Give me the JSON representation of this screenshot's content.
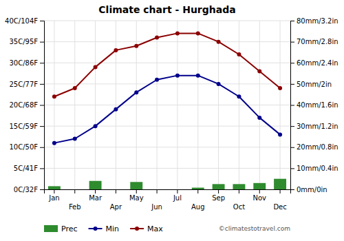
{
  "chart_data": {
    "type": "line",
    "title": "Climate chart - Hurghada",
    "categories": [
      "Jan",
      "Feb",
      "Mar",
      "Apr",
      "May",
      "Jun",
      "Jul",
      "Aug",
      "Sep",
      "Oct",
      "Nov",
      "Dec"
    ],
    "series": [
      {
        "name": "Prec",
        "type": "bar",
        "axis": "y2",
        "color": "#2e8b2e",
        "values": [
          1.5,
          null,
          4.0,
          null,
          3.5,
          null,
          null,
          0.8,
          2.5,
          2.5,
          3.0,
          5.0
        ]
      },
      {
        "name": "Min",
        "type": "line",
        "marker": "circle",
        "color": "#00008b",
        "values": [
          11,
          12,
          15,
          19,
          23,
          26,
          27,
          27,
          25,
          22,
          17,
          13
        ]
      },
      {
        "name": "Max",
        "type": "line",
        "marker": "circle",
        "color": "#8b0000",
        "values": [
          22,
          24,
          29,
          33,
          34,
          36,
          37,
          37,
          35,
          32,
          28,
          24
        ]
      }
    ],
    "ylim": [
      0,
      40
    ],
    "yticks": [
      {
        "value": 0,
        "label": "0C/32F"
      },
      {
        "value": 5,
        "label": "5C/41F"
      },
      {
        "value": 10,
        "label": "10C/50F"
      },
      {
        "value": 15,
        "label": "15C/59F"
      },
      {
        "value": 20,
        "label": "20C/68F"
      },
      {
        "value": 25,
        "label": "25C/77F"
      },
      {
        "value": 30,
        "label": "30C/86F"
      },
      {
        "value": 35,
        "label": "35C/95F"
      },
      {
        "value": 40,
        "label": "40C/104F"
      }
    ],
    "y2lim": [
      0,
      80
    ],
    "y2ticks": [
      {
        "value": 0,
        "label": "0mm/0in"
      },
      {
        "value": 10,
        "label": "10mm/0.4in"
      },
      {
        "value": 20,
        "label": "20mm/0.8in"
      },
      {
        "value": 30,
        "label": "30mm/1.2in"
      },
      {
        "value": 40,
        "label": "40mm/1.6in"
      },
      {
        "value": 50,
        "label": "50mm/2in"
      },
      {
        "value": 60,
        "label": "60mm/2.4in"
      },
      {
        "value": 70,
        "label": "70mm/2.8in"
      },
      {
        "value": 80,
        "label": "80mm/3.2in"
      }
    ],
    "grid": true,
    "legend": "bottom",
    "annotations": [
      "©climatestotravel.com"
    ]
  }
}
